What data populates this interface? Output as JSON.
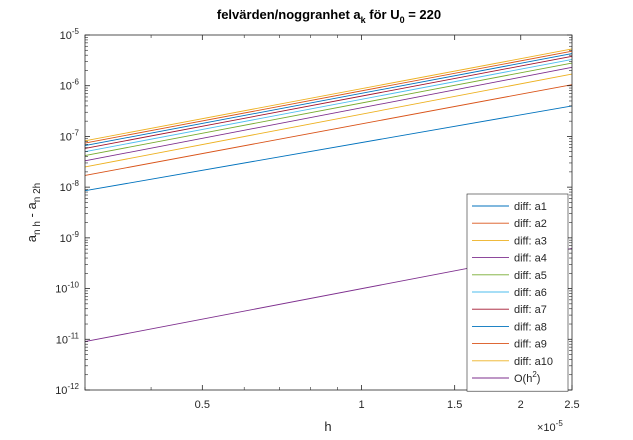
{
  "chart_data": {
    "type": "line",
    "title": {
      "pre": "felvärden/noggranhet a",
      "sub": "k",
      "mid": " för U",
      "sub2": "0",
      "post": " = 220"
    },
    "xlabel": "h",
    "ylabel": {
      "a1": "a",
      "sub1": "n h",
      "mid": " - a",
      "sub2": "n 2h"
    },
    "x_exponent": {
      "base": "×10",
      "exp": "-5"
    },
    "x_scale": "log",
    "y_scale": "log",
    "xlim": [
      3e-06,
      2.5e-05
    ],
    "ylim": [
      1e-12,
      1e-05
    ],
    "x_ticks": [
      {
        "value": 5e-06,
        "label": "0.5"
      },
      {
        "value": 1e-05,
        "label": "1"
      },
      {
        "value": 1.5e-05,
        "label": "1.5"
      },
      {
        "value": 2e-05,
        "label": "2"
      },
      {
        "value": 2.5e-05,
        "label": "2.5"
      }
    ],
    "y_ticks": [
      {
        "value": 1e-12,
        "base": "10",
        "exp": "-12"
      },
      {
        "value": 1e-11,
        "base": "10",
        "exp": "-11"
      },
      {
        "value": 1e-10,
        "base": "10",
        "exp": "-10"
      },
      {
        "value": 1e-09,
        "base": "10",
        "exp": "-9"
      },
      {
        "value": 1e-08,
        "base": "10",
        "exp": "-8"
      },
      {
        "value": 1e-07,
        "base": "10",
        "exp": "-7"
      },
      {
        "value": 1e-06,
        "base": "10",
        "exp": "-6"
      },
      {
        "value": 1e-05,
        "base": "10",
        "exp": "-5"
      }
    ],
    "grid": false,
    "legend_position": "bottom-right",
    "series": [
      {
        "name": "diff: a1",
        "color": "#0072BD",
        "x": [
          3e-06,
          2.5e-05
        ],
        "y": [
          8.5e-09,
          4e-07
        ]
      },
      {
        "name": "diff: a2",
        "color": "#D95319",
        "x": [
          3e-06,
          2.5e-05
        ],
        "y": [
          1.7e-08,
          1.05e-06
        ]
      },
      {
        "name": "diff: a3",
        "color": "#EDB120",
        "x": [
          3e-06,
          2.5e-05
        ],
        "y": [
          2.5e-08,
          1.7e-06
        ]
      },
      {
        "name": "diff: a4",
        "color": "#7E2F8E",
        "x": [
          3e-06,
          2.5e-05
        ],
        "y": [
          3.3e-08,
          2.3e-06
        ]
      },
      {
        "name": "diff: a5",
        "color": "#77AC30",
        "x": [
          3e-06,
          2.5e-05
        ],
        "y": [
          4.2e-08,
          2.8e-06
        ]
      },
      {
        "name": "diff: a6",
        "color": "#4DBEEE",
        "x": [
          3e-06,
          2.5e-05
        ],
        "y": [
          5e-08,
          3.3e-06
        ]
      },
      {
        "name": "diff: a7",
        "color": "#A2142F",
        "x": [
          3e-06,
          2.5e-05
        ],
        "y": [
          5.8e-08,
          3.8e-06
        ]
      },
      {
        "name": "diff: a8",
        "color": "#0072BD",
        "x": [
          3e-06,
          2.5e-05
        ],
        "y": [
          6.6e-08,
          4.3e-06
        ]
      },
      {
        "name": "diff: a9",
        "color": "#D95319",
        "x": [
          3e-06,
          2.5e-05
        ],
        "y": [
          7.4e-08,
          4.8e-06
        ]
      },
      {
        "name": "diff: a10",
        "color": "#EDB120",
        "x": [
          3e-06,
          2.5e-05
        ],
        "y": [
          8.2e-08,
          5.3e-06
        ]
      },
      {
        "name": "O(h",
        "name_sup": "2",
        "name_post": ")",
        "color": "#7E2F8E",
        "x": [
          3e-06,
          2.5e-05
        ],
        "y": [
          9e-12,
          6.2e-10
        ]
      }
    ]
  }
}
